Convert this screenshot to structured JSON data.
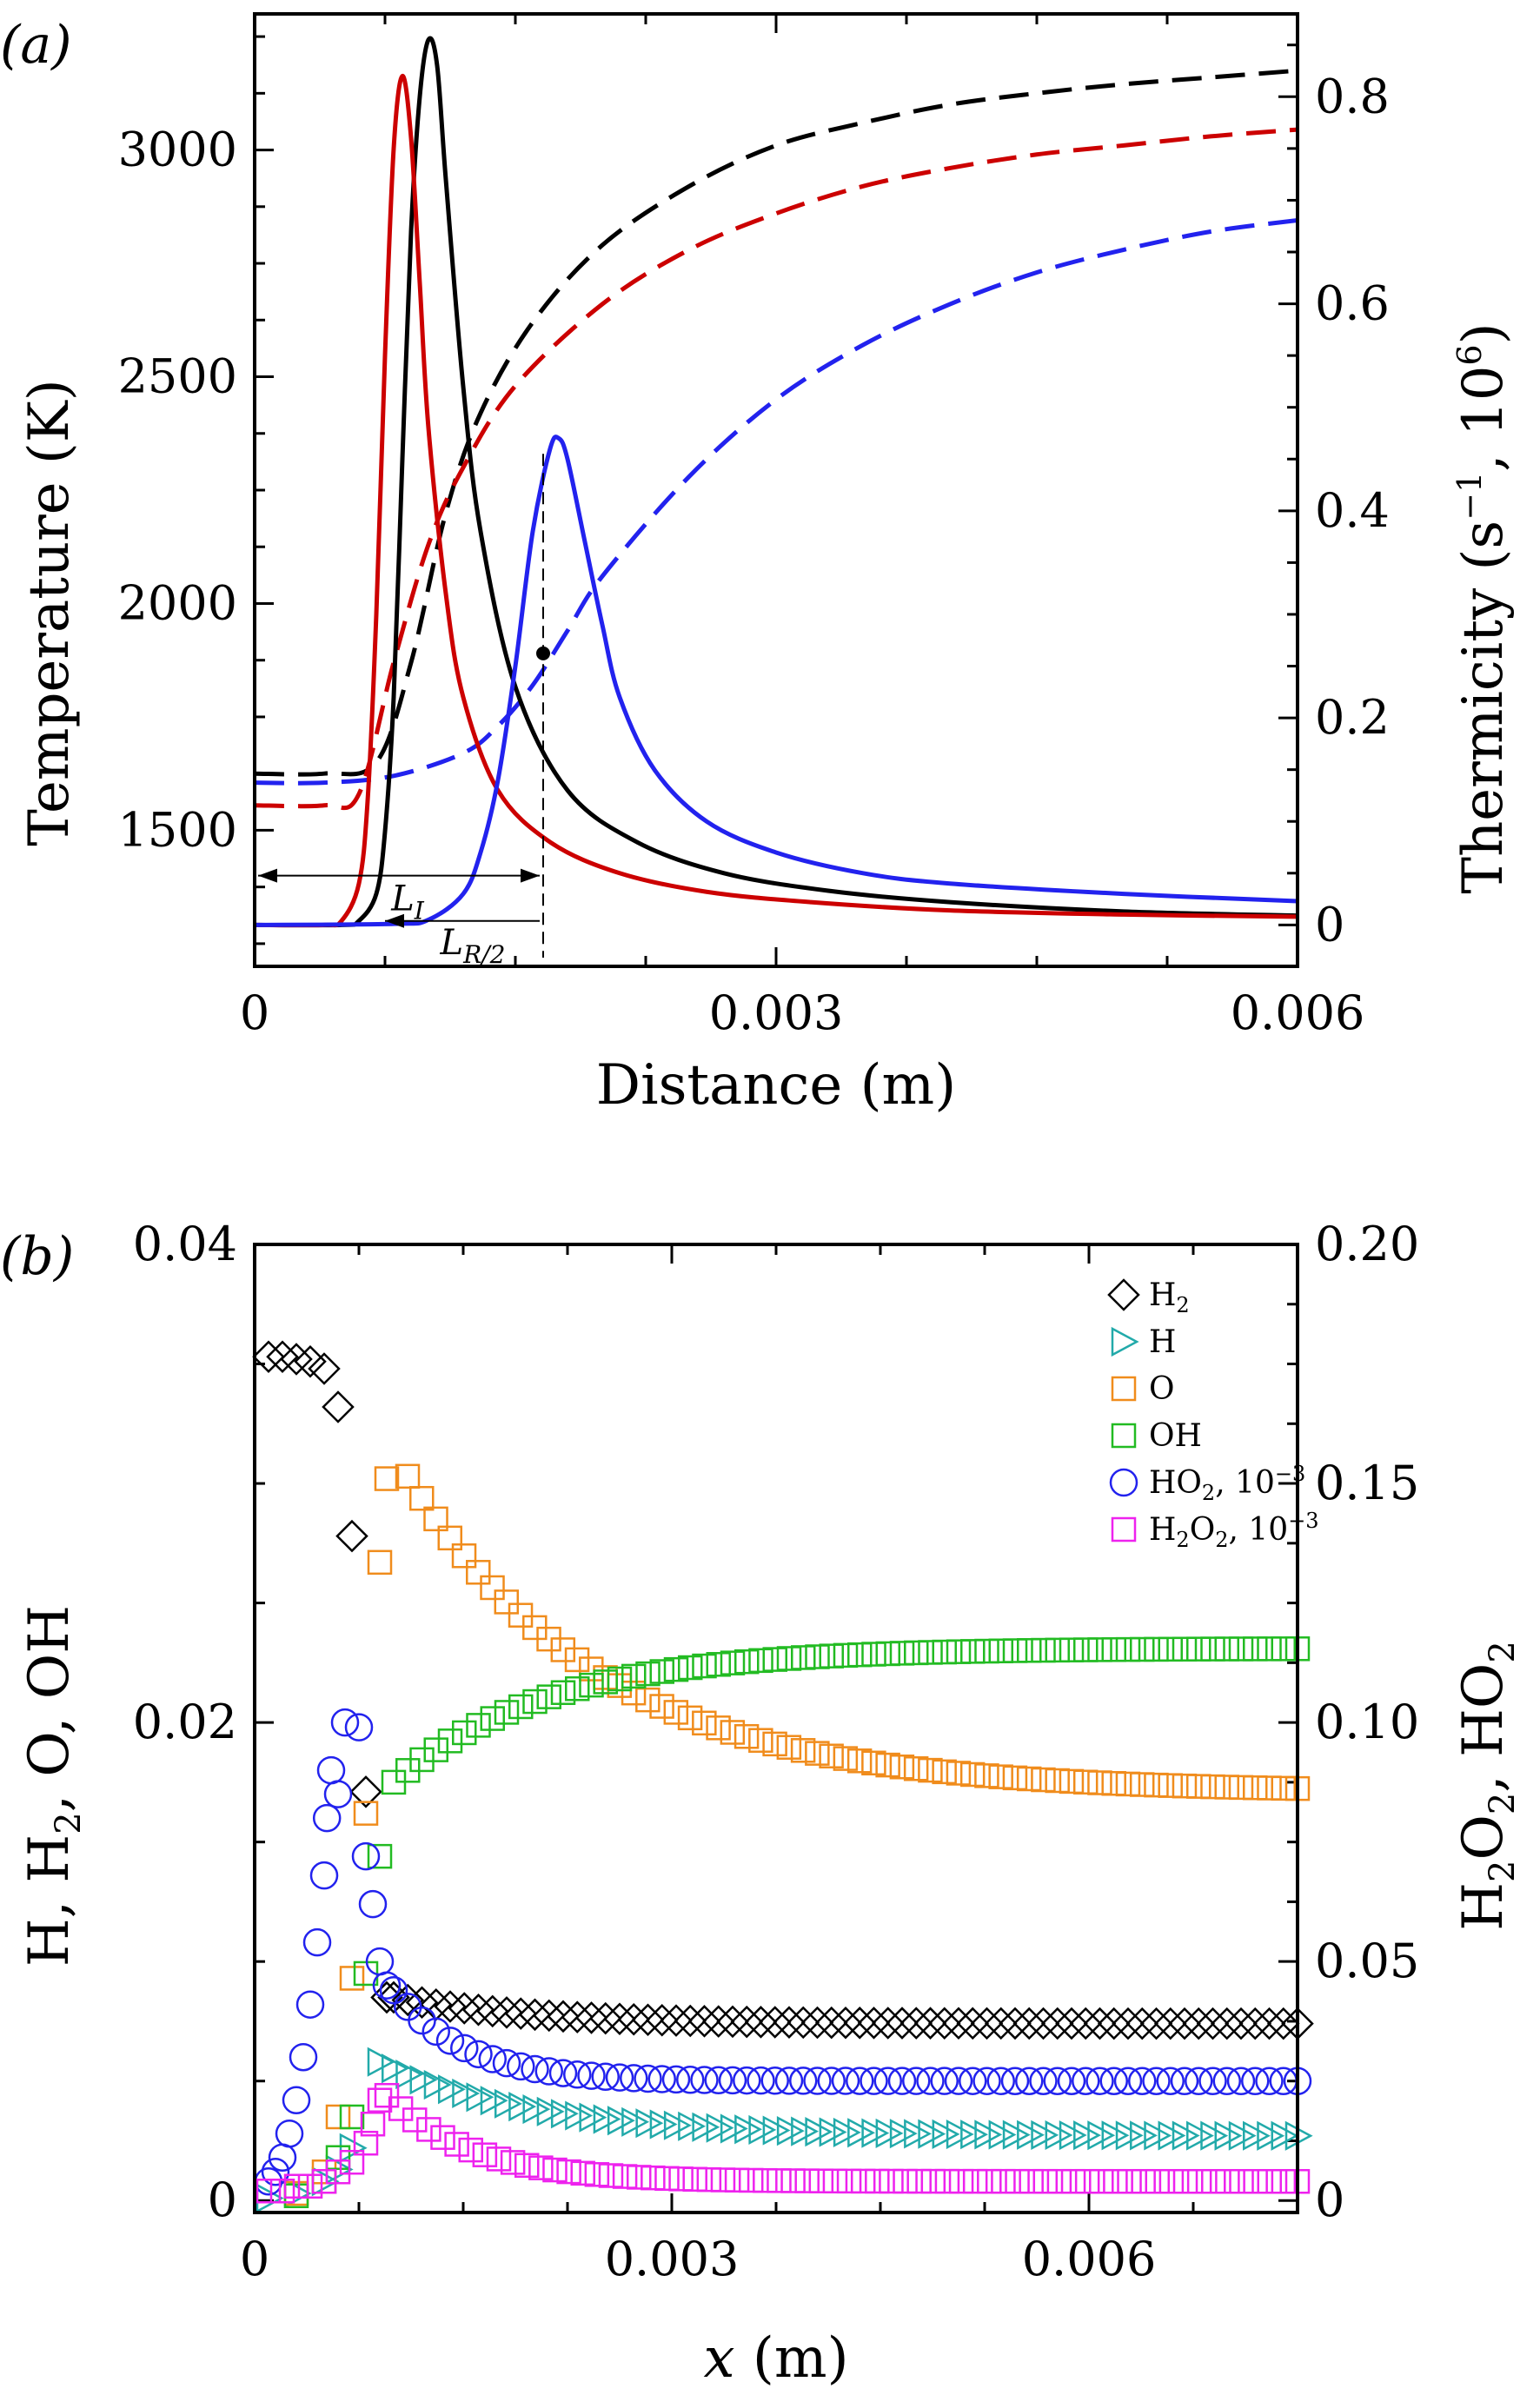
{
  "chart_data": [
    {
      "type": "line",
      "panel_label": "(a)",
      "xlabel": "Distance (m)",
      "ylabel_left": "Temperature (K)",
      "ylabel_right_parts": [
        "Thermicity (s",
        "−1",
        ", 10",
        "6",
        ")"
      ],
      "xlim": [
        0,
        0.006
      ],
      "ylim_left": [
        1200,
        3300
      ],
      "ylim_right": [
        -0.04,
        0.88
      ],
      "x_ticks": [
        0,
        0.003,
        0.006
      ],
      "x_tick_labels": [
        "0",
        "0.003",
        "0.006"
      ],
      "y_ticks_left": [
        1500,
        2000,
        2500,
        3000
      ],
      "y_tick_labels_left": [
        "1500",
        "2000",
        "2500",
        "3000"
      ],
      "y_ticks_right": [
        0,
        0.2,
        0.4,
        0.6,
        0.8
      ],
      "y_tick_labels_right": [
        "0",
        "0.2",
        "0.4",
        "0.6",
        "0.8"
      ],
      "annotations": {
        "LI": "L",
        "LI_sub": "I",
        "LR": "L",
        "LR_sub": "R/2",
        "marker_x": 0.00166,
        "marker_T": 1890
      },
      "series": [
        {
          "color": "#000000",
          "style": "dashed",
          "axis": "left",
          "x": [
            0,
            0.0004,
            0.0007,
            0.0009,
            0.0011,
            0.0013,
            0.0016,
            0.002,
            0.0025,
            0.003,
            0.0035,
            0.004,
            0.0045,
            0.005,
            0.0055,
            0.006
          ],
          "y": [
            1625,
            1625,
            1650,
            1870,
            2200,
            2420,
            2620,
            2790,
            2920,
            3010,
            3060,
            3100,
            3125,
            3145,
            3160,
            3175
          ]
        },
        {
          "color": "#cc0000",
          "style": "dashed",
          "axis": "left",
          "x": [
            0,
            0.0004,
            0.0006,
            0.0008,
            0.001,
            0.0012,
            0.0015,
            0.002,
            0.0025,
            0.003,
            0.0035,
            0.004,
            0.0045,
            0.005,
            0.0055,
            0.006
          ],
          "y": [
            1555,
            1555,
            1580,
            1870,
            2130,
            2300,
            2480,
            2660,
            2780,
            2860,
            2920,
            2960,
            2990,
            3010,
            3030,
            3045
          ]
        },
        {
          "color": "#2222ee",
          "style": "dashed",
          "axis": "left",
          "x": [
            0,
            0.0004,
            0.0008,
            0.0012,
            0.0014,
            0.0016,
            0.0018,
            0.002,
            0.0025,
            0.003,
            0.0035,
            0.004,
            0.0045,
            0.005,
            0.0055,
            0.006
          ],
          "y": [
            1605,
            1605,
            1620,
            1670,
            1730,
            1820,
            1940,
            2060,
            2280,
            2450,
            2570,
            2660,
            2730,
            2780,
            2820,
            2845
          ]
        },
        {
          "color": "#000000",
          "style": "solid",
          "axis": "right",
          "x": [
            0,
            0.0005,
            0.0006,
            0.0007,
            0.00075,
            0.0008,
            0.00085,
            0.0009,
            0.00095,
            0.001,
            0.00105,
            0.0011,
            0.0012,
            0.0013,
            0.0015,
            0.0018,
            0.0022,
            0.0027,
            0.0033,
            0.004,
            0.005,
            0.006
          ],
          "y": [
            0,
            0,
            0.004,
            0.03,
            0.09,
            0.22,
            0.45,
            0.67,
            0.8,
            0.855,
            0.83,
            0.72,
            0.52,
            0.38,
            0.23,
            0.13,
            0.08,
            0.05,
            0.033,
            0.022,
            0.013,
            0.009
          ]
        },
        {
          "color": "#cc0000",
          "style": "solid",
          "axis": "right",
          "x": [
            0,
            0.0004,
            0.0005,
            0.0006,
            0.00065,
            0.0007,
            0.00075,
            0.0008,
            0.00085,
            0.0009,
            0.00095,
            0.001,
            0.0011,
            0.0012,
            0.0014,
            0.0017,
            0.0021,
            0.0026,
            0.0032,
            0.004,
            0.005,
            0.006
          ],
          "y": [
            0,
            0,
            0.004,
            0.04,
            0.12,
            0.3,
            0.55,
            0.75,
            0.82,
            0.76,
            0.62,
            0.48,
            0.32,
            0.22,
            0.13,
            0.08,
            0.05,
            0.032,
            0.022,
            0.014,
            0.01,
            0.008
          ]
        },
        {
          "color": "#2222ee",
          "style": "solid",
          "axis": "right",
          "x": [
            0,
            0.0008,
            0.001,
            0.0012,
            0.0013,
            0.0014,
            0.0015,
            0.0016,
            0.0017,
            0.00175,
            0.0018,
            0.0019,
            0.002,
            0.0021,
            0.0023,
            0.0026,
            0.003,
            0.0035,
            0.004,
            0.005,
            0.006
          ],
          "y": [
            0,
            0.001,
            0.005,
            0.03,
            0.07,
            0.14,
            0.25,
            0.38,
            0.46,
            0.47,
            0.45,
            0.37,
            0.29,
            0.22,
            0.15,
            0.1,
            0.07,
            0.05,
            0.04,
            0.03,
            0.023
          ]
        }
      ]
    },
    {
      "type": "scatter",
      "panel_label": "(b)",
      "xlabel_parts": [
        "x",
        " (m)"
      ],
      "ylabel_left_parts": [
        "H, H",
        "2",
        ", O, OH"
      ],
      "ylabel_right_parts": [
        "H",
        "2",
        "O",
        "2",
        ", HO",
        "2"
      ],
      "xlim": [
        0,
        0.0075
      ],
      "ylim_left": [
        -0.0005,
        0.04
      ],
      "ylim_right": [
        -0.0025,
        0.2
      ],
      "x_ticks": [
        0,
        0.003,
        0.006
      ],
      "x_tick_labels": [
        "0",
        "0.003",
        "0.006"
      ],
      "y_ticks_left": [
        0,
        0.02,
        0.04
      ],
      "y_tick_labels_left": [
        "0",
        "0.02",
        "0.04"
      ],
      "y_ticks_right": [
        0,
        0.05,
        0.1,
        0.15,
        0.2
      ],
      "y_tick_labels_right": [
        "0",
        "0.05",
        "0.10",
        "0.15",
        "0.20"
      ],
      "legend": [
        {
          "marker": "diamond",
          "color": "#000000",
          "parts": [
            "H",
            "2",
            ""
          ]
        },
        {
          "marker": "triangle-right",
          "color": "#22aaaa",
          "parts": [
            "H",
            "",
            ""
          ]
        },
        {
          "marker": "square",
          "color": "#f08c1c",
          "parts": [
            "O",
            "",
            ""
          ]
        },
        {
          "marker": "square",
          "color": "#22bb22",
          "parts": [
            "OH",
            "",
            ""
          ]
        },
        {
          "marker": "circle",
          "color": "#2222ee",
          "parts": [
            "HO",
            "2",
            ", 10",
            "−3"
          ]
        },
        {
          "marker": "square",
          "color": "#ee22ee",
          "parts": [
            "H",
            "2",
            "O",
            "2",
            ", 10",
            "−3"
          ]
        }
      ],
      "series": [
        {
          "name": "H2",
          "marker": "diamond",
          "color": "#000000",
          "axis": "left",
          "x": [
            0.0001,
            0.0002,
            0.0003,
            0.0004,
            0.0005,
            0.0006,
            0.0007,
            0.0008,
            0.00095
          ],
          "y": [
            0.0353,
            0.0353,
            0.0352,
            0.0351,
            0.0348,
            0.0332,
            0.0278,
            0.0171,
            0.0085
          ],
          "tail": {
            "x0": 0.001,
            "x1": 0.0075,
            "y0": 0.0085,
            "y1": 0.0074,
            "k": 0.00095,
            "n": 65
          }
        },
        {
          "name": "H",
          "marker": "triangle-right",
          "color": "#22aaaa",
          "axis": "left",
          "x": [
            0.0001,
            0.0003,
            0.0005,
            0.0006,
            0.0007
          ],
          "y": [
            0.0001,
            0.0003,
            0.0008,
            0.0013,
            0.0022
          ],
          "tail": {
            "x0": 0.0009,
            "x1": 0.0075,
            "y0": 0.0058,
            "y1": 0.0027,
            "k": 0.0011,
            "n": 66
          }
        },
        {
          "name": "O",
          "marker": "square",
          "color": "#f08c1c",
          "axis": "left",
          "x": [
            0.0003,
            0.0005,
            0.0006,
            0.0007,
            0.0008,
            0.0009,
            0.00095
          ],
          "y": [
            0.0003,
            0.0012,
            0.0035,
            0.0093,
            0.0162,
            0.0267,
            0.0302
          ],
          "tail": {
            "x0": 0.0011,
            "x1": 0.0075,
            "y0": 0.0303,
            "y1": 0.0171,
            "k": 0.0014,
            "n": 64
          }
        },
        {
          "name": "OH",
          "marker": "square",
          "color": "#22bb22",
          "axis": "left",
          "x": [
            0.0003,
            0.0005,
            0.0006,
            0.0007,
            0.0008,
            0.0009
          ],
          "y": [
            0.0002,
            0.0008,
            0.0018,
            0.0035,
            0.0095,
            0.0144
          ],
          "tail": {
            "x0": 0.001,
            "x1": 0.0075,
            "y0": 0.0175,
            "y1": 0.0231,
            "k": -0.0011,
            "n": 65
          }
        },
        {
          "name": "HO2",
          "marker": "circle",
          "color": "#2222ee",
          "axis": "right",
          "x": [
            0.0001,
            0.00015,
            0.0002,
            0.00025,
            0.0003,
            0.00035,
            0.0004,
            0.00045,
            0.0005,
            0.00052,
            0.00055,
            0.0006,
            0.00065,
            0.00075,
            0.0008,
            0.00085,
            0.0009,
            0.00095
          ],
          "y": [
            0.004,
            0.006,
            0.009,
            0.014,
            0.021,
            0.03,
            0.041,
            0.054,
            0.068,
            0.08,
            0.09,
            0.085,
            0.1,
            0.099,
            0.072,
            0.062,
            0.05,
            0.045
          ],
          "tail": {
            "x0": 0.001,
            "x1": 0.0075,
            "y0": 0.044,
            "y1": 0.025,
            "k": 0.0005,
            "n": 65
          }
        },
        {
          "name": "H2O2",
          "marker": "square",
          "color": "#ee22ee",
          "axis": "right",
          "x": [
            0.0001,
            0.0002,
            0.0003,
            0.0004,
            0.0005,
            0.0006,
            0.0007,
            0.0008,
            0.00085,
            0.0009
          ],
          "y": [
            0.002,
            0.002,
            0.003,
            0.003,
            0.004,
            0.006,
            0.008,
            0.012,
            0.016,
            0.021
          ],
          "tail": {
            "x0": 0.00095,
            "x1": 0.0075,
            "y0": 0.022,
            "y1": 0.004,
            "k": 0.0006,
            "n": 66
          }
        }
      ]
    }
  ]
}
